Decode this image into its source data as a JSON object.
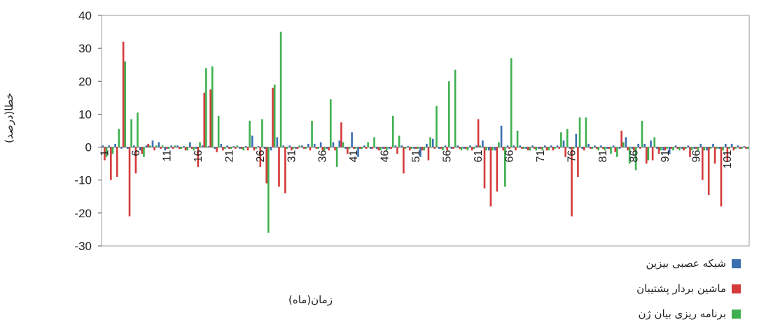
{
  "chart_data": {
    "type": "bar",
    "xlabel": "زمان(ماه)",
    "ylabel": "خطا(درصد)",
    "ylim": [
      -30,
      40
    ],
    "yticks": [
      -30,
      -20,
      -10,
      0,
      10,
      20,
      30,
      40
    ],
    "xticks": [
      1,
      6,
      11,
      16,
      21,
      26,
      31,
      36,
      41,
      46,
      51,
      56,
      61,
      66,
      71,
      76,
      81,
      86,
      91,
      96,
      101
    ],
    "xticklabels": [
      "1",
      "6",
      "11",
      "16",
      "21",
      "26",
      "31",
      "36",
      "41",
      "46",
      "51",
      "56",
      "61",
      "66",
      "71",
      "76",
      "81",
      "86",
      "91",
      "96",
      "101"
    ],
    "legend_position": "bottom-right",
    "categories_count": 104,
    "series": [
      {
        "name": "شبکه عصبی بیزین",
        "color": "#3a6fb0",
        "values": [
          0.5,
          0.5,
          1,
          -0.5,
          -0.5,
          0.5,
          -1,
          0.5,
          2,
          1.5,
          -1,
          0.5,
          0.5,
          0.3,
          1.5,
          -0.5,
          0.5,
          0.3,
          -0.5,
          1,
          0.5,
          0.3,
          -0.5,
          0.3,
          3.5,
          0.3,
          -0.5,
          -1,
          3,
          0.5,
          0.5,
          -0.5,
          0.5,
          1,
          1,
          1.5,
          -0.5,
          1.5,
          2,
          -0.5,
          4.5,
          -3,
          0.5,
          -0.5,
          -0.5,
          -0.5,
          -0.5,
          0.5,
          0.5,
          0.3,
          -0.5,
          -3,
          1,
          2.5,
          -0.5,
          0.5,
          -0.5,
          0.5,
          -0.5,
          0.5,
          0.5,
          2,
          -1,
          -1,
          6.5,
          0.5,
          0.5,
          0.5,
          -0.5,
          0.5,
          -0.5,
          0.5,
          0.5,
          0.5,
          2,
          -0.5,
          4,
          -0.5,
          1,
          0.5,
          0.5,
          -0.5,
          0.5,
          -0.5,
          3,
          -0.5,
          1,
          1,
          2,
          -0.5,
          -1,
          -2,
          0.5,
          -0.5,
          0.5,
          -0.5,
          1,
          -1,
          1,
          -0.5,
          1,
          1,
          0.5,
          0.3
        ]
      },
      {
        "name": "ماشین بردار پشتیبان",
        "color": "#d43a3a",
        "values": [
          -4,
          -10,
          -9,
          32,
          -21,
          -8,
          -2,
          1,
          -1,
          -0.5,
          -0.5,
          -0.5,
          -0.5,
          -1,
          -0.5,
          -6,
          16.5,
          17.5,
          -1.5,
          -1,
          -0.5,
          -0.5,
          -0.5,
          -1,
          -1,
          -6,
          -11,
          18,
          -12,
          -14,
          -1,
          -0.5,
          -0.5,
          -1,
          -0.5,
          -1,
          -1,
          -1,
          7.5,
          -2,
          -0.5,
          -0.5,
          -0.5,
          -0.5,
          -1,
          -0.5,
          -0.5,
          -2,
          -8,
          -1,
          -0.5,
          -1,
          -4,
          -0.5,
          -0.5,
          -1,
          -0.5,
          -0.5,
          -0.5,
          -1,
          8.5,
          -12.5,
          -18,
          -13.5,
          -1,
          -0.5,
          -1,
          -0.5,
          -1,
          -0.5,
          -0.5,
          -1,
          -1,
          -0.5,
          -3,
          -21,
          -9,
          -1,
          -0.5,
          -0.5,
          -0.5,
          -0.5,
          -1.5,
          5,
          -1,
          -1,
          -0.5,
          -5,
          -4,
          -2,
          -1,
          -0.5,
          -0.5,
          -1,
          -3,
          -0.5,
          -10,
          -14.5,
          -5,
          -18,
          -4.5,
          -1,
          -0.5,
          -0.5
        ]
      },
      {
        "name": "برنامه ریزی بیان ژن",
        "color": "#3fb050",
        "values": [
          -3,
          -2,
          5.5,
          26,
          8.5,
          10.5,
          -3,
          0.5,
          0.5,
          0.5,
          -0.5,
          0.5,
          -0.5,
          -1,
          -1,
          1.5,
          24,
          24.5,
          9.5,
          -0.5,
          -0.5,
          0.5,
          -1,
          8,
          -0.5,
          8.5,
          -26,
          19,
          35,
          -0.5,
          -0.5,
          0.5,
          -0.5,
          8,
          -0.5,
          -1,
          14.5,
          -6,
          1.5,
          -0.5,
          -0.5,
          -0.5,
          1.5,
          3,
          -1,
          -1,
          9.5,
          3.5,
          -0.5,
          -0.5,
          -0.5,
          -1,
          3,
          12.5,
          -1,
          20,
          23.5,
          -1,
          -1,
          -0.5,
          0.5,
          -1,
          -1,
          1.5,
          -12,
          27,
          5,
          -0.5,
          -1,
          -1,
          -1,
          -1,
          -0.5,
          4.5,
          5.5,
          -0.5,
          9,
          9,
          -0.5,
          -1,
          -1,
          -2,
          -3,
          1.5,
          -5,
          -7,
          8,
          -4,
          3,
          -1,
          -0.5,
          -1,
          -1,
          -0.5,
          -1,
          -1,
          -1,
          -0.5,
          -0.5,
          -1,
          -0.5,
          -0.5,
          -0.5,
          -0.5
        ]
      }
    ]
  }
}
